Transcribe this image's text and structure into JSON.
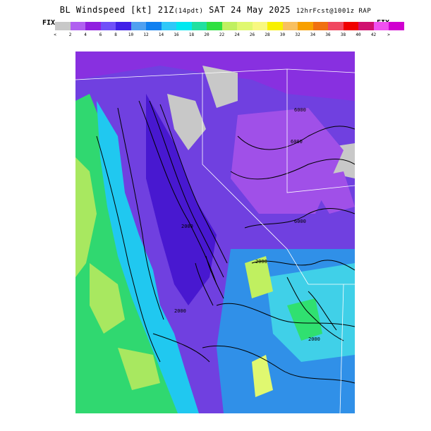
{
  "title": {
    "main": "BL Windspeed [kt] 21Z",
    "local": "(14pdt)",
    "date": " SAT 24 May 2025 ",
    "forecast": "12hrFcst@1001z RAP"
  },
  "fix_label": "FIX",
  "scale_colors": [
    "#c8c8c8",
    "#b060f0",
    "#9020e0",
    "#7050f8",
    "#4020e8",
    "#50a0f0",
    "#1080f0",
    "#30c8f8",
    "#00e8f0",
    "#20e0a0",
    "#30e040",
    "#c0f060",
    "#e0f870",
    "#f8f880",
    "#f8f000",
    "#f8c060",
    "#f8a000",
    "#f07010",
    "#f04860",
    "#f00000",
    "#d01070",
    "#f050f0",
    "#d000d0"
  ],
  "scale_ticks": [
    "<",
    "2",
    "4",
    "6",
    "8",
    "10",
    "12",
    "14",
    "16",
    "18",
    "20",
    "22",
    "24",
    "26",
    "28",
    "30",
    "32",
    "34",
    "36",
    "38",
    "40",
    "42",
    ">"
  ],
  "contour_labels": [
    "6000",
    "6000",
    "6000",
    "2000",
    "2000",
    "2000",
    "2000"
  ]
}
